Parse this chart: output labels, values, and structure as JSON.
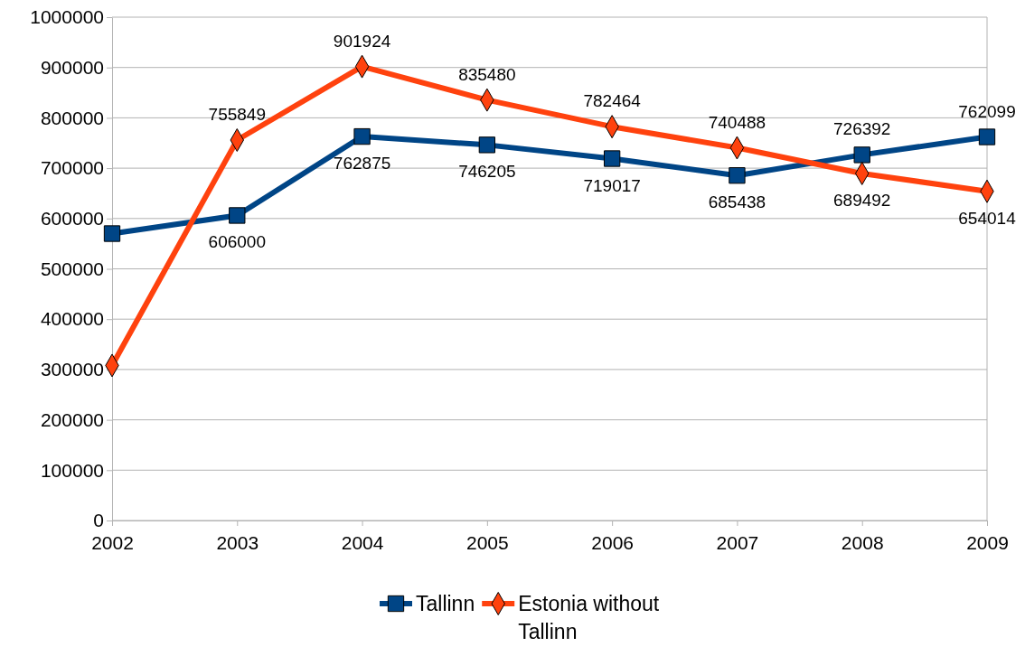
{
  "chart_data": {
    "type": "line",
    "categories": [
      "2002",
      "2003",
      "2004",
      "2005",
      "2006",
      "2007",
      "2008",
      "2009"
    ],
    "series": [
      {
        "name": "Tallinn",
        "color": "#004586",
        "marker": "square",
        "values": [
          570000,
          606000,
          762875,
          746205,
          719017,
          685438,
          726392,
          762099
        ],
        "value_labels": [
          null,
          "606000",
          "762875",
          "746205",
          "719017",
          "685438",
          "726392",
          "762099"
        ]
      },
      {
        "name": "Estonia without Tallinn",
        "color": "#ff420e",
        "marker": "diamond",
        "values": [
          308000,
          755849,
          901924,
          835480,
          782464,
          740488,
          689492,
          654014
        ],
        "value_labels": [
          null,
          "755849",
          "901924",
          "835480",
          "782464",
          "740488",
          "689492",
          "654014"
        ]
      }
    ],
    "ylim": [
      0,
      1000000
    ],
    "yticks": [
      0,
      100000,
      200000,
      300000,
      400000,
      500000,
      600000,
      700000,
      800000,
      900000,
      1000000
    ],
    "grid": "y",
    "legend": "bottom"
  }
}
